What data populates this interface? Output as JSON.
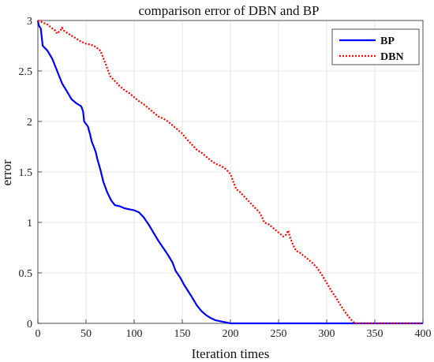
{
  "chart_data": {
    "type": "line",
    "title": "comparison error of DBN and BP",
    "xlabel": "Iteration times",
    "ylabel": "error",
    "xlim": [
      0,
      400
    ],
    "ylim": [
      0,
      3
    ],
    "xticks": [
      "0",
      "50",
      "100",
      "150",
      "200",
      "250",
      "300",
      "350",
      "400"
    ],
    "yticks": [
      "0",
      "0.5",
      "1",
      "1.5",
      "2",
      "2.5",
      "3"
    ],
    "grid": true,
    "legend_position": "top-right",
    "series": [
      {
        "name": "BP",
        "color": "#0000ff",
        "style": "solid",
        "points": [
          [
            0,
            3.0
          ],
          [
            1,
            2.95
          ],
          [
            3,
            2.92
          ],
          [
            5,
            2.75
          ],
          [
            10,
            2.7
          ],
          [
            15,
            2.62
          ],
          [
            20,
            2.5
          ],
          [
            25,
            2.38
          ],
          [
            30,
            2.3
          ],
          [
            35,
            2.22
          ],
          [
            40,
            2.18
          ],
          [
            45,
            2.15
          ],
          [
            47,
            2.1
          ],
          [
            48,
            2.0
          ],
          [
            52,
            1.95
          ],
          [
            54,
            1.88
          ],
          [
            56,
            1.8
          ],
          [
            58,
            1.75
          ],
          [
            60,
            1.7
          ],
          [
            62,
            1.62
          ],
          [
            65,
            1.52
          ],
          [
            68,
            1.4
          ],
          [
            72,
            1.3
          ],
          [
            76,
            1.22
          ],
          [
            80,
            1.17
          ],
          [
            85,
            1.16
          ],
          [
            90,
            1.14
          ],
          [
            95,
            1.13
          ],
          [
            100,
            1.12
          ],
          [
            105,
            1.1
          ],
          [
            110,
            1.05
          ],
          [
            115,
            0.98
          ],
          [
            120,
            0.9
          ],
          [
            125,
            0.82
          ],
          [
            130,
            0.75
          ],
          [
            135,
            0.68
          ],
          [
            140,
            0.6
          ],
          [
            143,
            0.52
          ],
          [
            148,
            0.45
          ],
          [
            152,
            0.38
          ],
          [
            156,
            0.32
          ],
          [
            160,
            0.26
          ],
          [
            165,
            0.18
          ],
          [
            170,
            0.12
          ],
          [
            175,
            0.08
          ],
          [
            180,
            0.05
          ],
          [
            185,
            0.03
          ],
          [
            190,
            0.02
          ],
          [
            195,
            0.01
          ],
          [
            200,
            0.0
          ],
          [
            250,
            0.0
          ],
          [
            300,
            0.0
          ],
          [
            350,
            0.0
          ],
          [
            400,
            0.0
          ]
        ]
      },
      {
        "name": "DBN",
        "color": "#ff0000",
        "style": "dotted",
        "points": [
          [
            0,
            3.0
          ],
          [
            5,
            2.98
          ],
          [
            10,
            2.96
          ],
          [
            15,
            2.92
          ],
          [
            18,
            2.9
          ],
          [
            20,
            2.87
          ],
          [
            22,
            2.89
          ],
          [
            24,
            2.91
          ],
          [
            25,
            2.93
          ],
          [
            27,
            2.9
          ],
          [
            30,
            2.88
          ],
          [
            35,
            2.85
          ],
          [
            40,
            2.82
          ],
          [
            45,
            2.79
          ],
          [
            50,
            2.77
          ],
          [
            55,
            2.76
          ],
          [
            60,
            2.74
          ],
          [
            65,
            2.7
          ],
          [
            70,
            2.58
          ],
          [
            75,
            2.45
          ],
          [
            80,
            2.4
          ],
          [
            85,
            2.35
          ],
          [
            90,
            2.31
          ],
          [
            95,
            2.28
          ],
          [
            100,
            2.24
          ],
          [
            105,
            2.2
          ],
          [
            110,
            2.17
          ],
          [
            115,
            2.13
          ],
          [
            120,
            2.09
          ],
          [
            125,
            2.05
          ],
          [
            130,
            2.03
          ],
          [
            135,
            2.0
          ],
          [
            140,
            1.96
          ],
          [
            145,
            1.92
          ],
          [
            150,
            1.88
          ],
          [
            155,
            1.82
          ],
          [
            160,
            1.77
          ],
          [
            165,
            1.72
          ],
          [
            170,
            1.69
          ],
          [
            175,
            1.65
          ],
          [
            180,
            1.61
          ],
          [
            185,
            1.58
          ],
          [
            190,
            1.56
          ],
          [
            195,
            1.53
          ],
          [
            200,
            1.48
          ],
          [
            203,
            1.4
          ],
          [
            206,
            1.33
          ],
          [
            210,
            1.3
          ],
          [
            215,
            1.25
          ],
          [
            220,
            1.2
          ],
          [
            225,
            1.15
          ],
          [
            230,
            1.1
          ],
          [
            233,
            1.05
          ],
          [
            235,
            1.0
          ],
          [
            240,
            0.98
          ],
          [
            245,
            0.94
          ],
          [
            250,
            0.9
          ],
          [
            255,
            0.86
          ],
          [
            258,
            0.88
          ],
          [
            260,
            0.92
          ],
          [
            262,
            0.85
          ],
          [
            265,
            0.78
          ],
          [
            268,
            0.72
          ],
          [
            272,
            0.7
          ],
          [
            276,
            0.67
          ],
          [
            280,
            0.64
          ],
          [
            285,
            0.6
          ],
          [
            290,
            0.55
          ],
          [
            295,
            0.48
          ],
          [
            300,
            0.4
          ],
          [
            305,
            0.32
          ],
          [
            310,
            0.25
          ],
          [
            315,
            0.17
          ],
          [
            320,
            0.1
          ],
          [
            325,
            0.04
          ],
          [
            328,
            0.01
          ],
          [
            330,
            0.0
          ],
          [
            350,
            0.0
          ],
          [
            400,
            0.0
          ]
        ]
      }
    ]
  }
}
